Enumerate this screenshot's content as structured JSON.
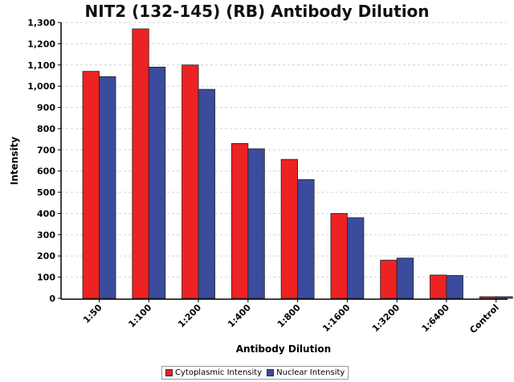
{
  "chart_data": {
    "type": "bar",
    "title": "NIT2 (132-145) (RB) Antibody Dilution",
    "xlabel": "Antibody Dilution",
    "ylabel": "Intensity",
    "ylim": [
      0,
      1300
    ],
    "yticks": [
      0,
      100,
      200,
      300,
      400,
      500,
      600,
      700,
      800,
      900,
      1000,
      1100,
      1200,
      1300
    ],
    "ytick_labels": [
      "0",
      "100",
      "200",
      "300",
      "400",
      "500",
      "600",
      "700",
      "800",
      "900",
      "1,000",
      "1,100",
      "1,200",
      "1,300"
    ],
    "categories": [
      "1:50",
      "1:100",
      "1:200",
      "1:400",
      "1:800",
      "1:1600",
      "1:3200",
      "1:6400",
      "Control"
    ],
    "series": [
      {
        "name": "Cytoplasmic Intensity",
        "color": "#ee2222",
        "values": [
          1070,
          1270,
          1100,
          730,
          655,
          400,
          180,
          110,
          8
        ]
      },
      {
        "name": "Nuclear Intensity",
        "color": "#3b4c9c",
        "values": [
          1045,
          1090,
          985,
          705,
          560,
          380,
          190,
          108,
          8
        ]
      }
    ],
    "grid": true,
    "legend_position": "bottom"
  }
}
